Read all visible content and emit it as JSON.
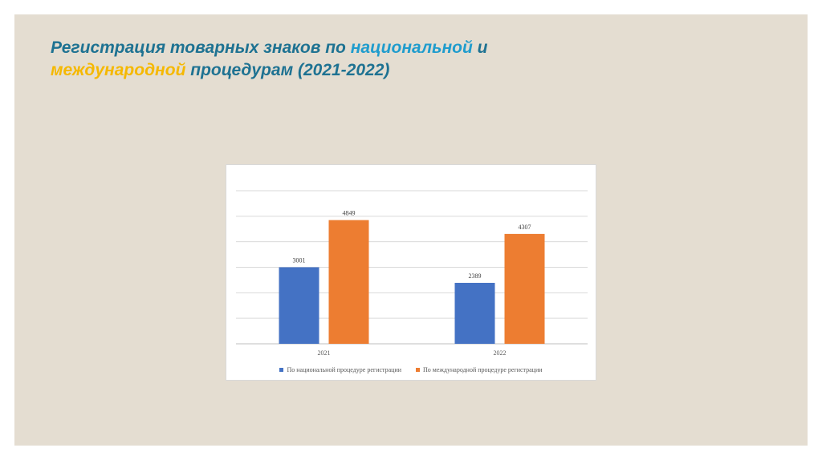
{
  "title": {
    "part1": "Регистрация товарных знаков по ",
    "part2": "национальной",
    "part3": " и",
    "part4": "международной",
    "part5": " процедурам (2021-2022)"
  },
  "colors": {
    "national": "#4472c4",
    "international": "#ed7d31",
    "title": "#1e7292",
    "title_blue": "#1f9ccd",
    "title_orange": "#f5b800"
  },
  "chart_data": {
    "type": "bar",
    "categories": [
      "2021",
      "2022"
    ],
    "series": [
      {
        "name": "По национальной процедуре регистрации",
        "values": [
          3001,
          2389
        ],
        "color": "#4472c4"
      },
      {
        "name": "По международной процедуре регистрации",
        "values": [
          4849,
          4307
        ],
        "color": "#ed7d31"
      }
    ],
    "ylim": [
      0,
      6000
    ],
    "grid": true,
    "data_labels": true,
    "legend": "bottom"
  }
}
